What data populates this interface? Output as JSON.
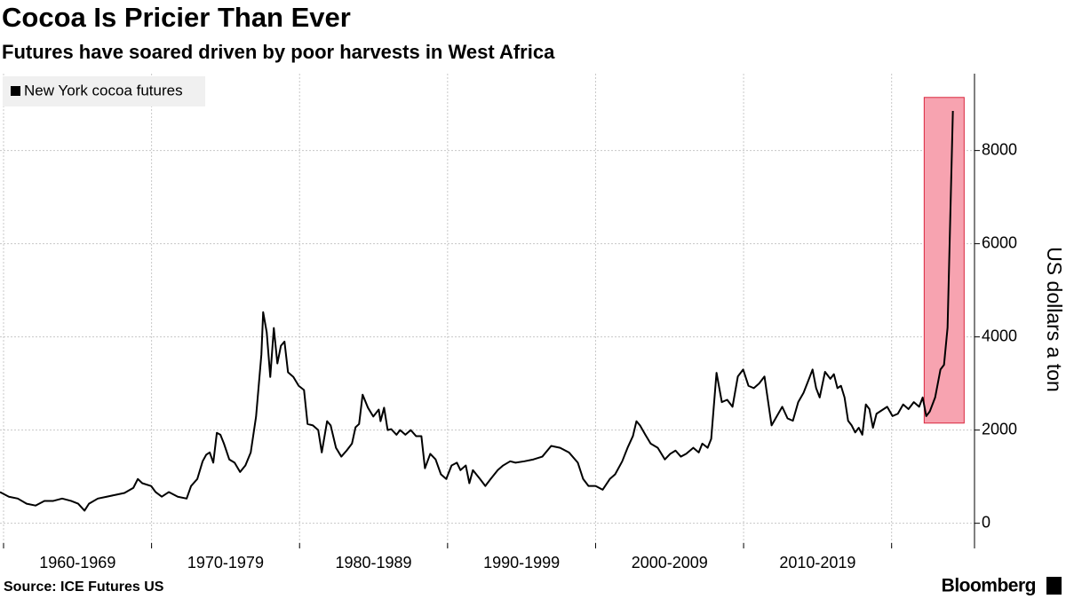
{
  "chart_data": {
    "type": "line",
    "title": "Cocoa Is Pricier Than Ever",
    "subtitle": "Futures have soared driven by poor harvests in West Africa",
    "y_label": "US dollars a ton",
    "source": "Source: ICE Futures US",
    "brand": "Bloomberg",
    "legend_position": "top-left",
    "grid": true,
    "xlim": [
      1959.76,
      2025.6
    ],
    "xticks": [
      1960,
      1970,
      1980,
      1990,
      2000,
      2010,
      2020
    ],
    "xtick_labels": [
      {
        "value": 1965,
        "label": "1960-1969"
      },
      {
        "value": 1975,
        "label": "1970-1979"
      },
      {
        "value": 1985,
        "label": "1980-1989"
      },
      {
        "value": 1995,
        "label": "1990-1999"
      },
      {
        "value": 2005,
        "label": "2000-2009"
      },
      {
        "value": 2015,
        "label": "2010-2019"
      }
    ],
    "ylim": [
      -540,
      9650
    ],
    "yticks": [
      0,
      2000,
      4000,
      6000,
      8000
    ],
    "highlight": {
      "xlim": [
        2022.2,
        2024.9
      ],
      "ylim": [
        2150,
        9140
      ],
      "color": "#f7a3b0",
      "edge": "#d9263d"
    },
    "series": [
      {
        "name": "New York cocoa futures",
        "color": "#000000",
        "x": [
          1959.76,
          1960.36,
          1960.96,
          1961.56,
          1962.16,
          1962.76,
          1963.36,
          1963.96,
          1964.56,
          1965.04,
          1965.47,
          1965.77,
          1966.37,
          1966.97,
          1967.57,
          1968.17,
          1968.77,
          1969.07,
          1969.37,
          1969.97,
          1970.27,
          1970.69,
          1971.17,
          1971.77,
          1972.37,
          1972.67,
          1973.09,
          1973.45,
          1973.69,
          1973.93,
          1974.17,
          1974.41,
          1974.65,
          1974.89,
          1975.25,
          1975.61,
          1975.98,
          1976.34,
          1976.7,
          1977.06,
          1977.42,
          1977.54,
          1977.78,
          1978.02,
          1978.26,
          1978.5,
          1978.74,
          1978.98,
          1979.22,
          1979.58,
          1979.94,
          1980.3,
          1980.54,
          1980.9,
          1981.26,
          1981.5,
          1981.86,
          1982.1,
          1982.46,
          1982.82,
          1983.18,
          1983.54,
          1983.78,
          1984.02,
          1984.26,
          1984.62,
          1984.98,
          1985.35,
          1985.47,
          1985.71,
          1985.95,
          1986.19,
          1986.55,
          1986.79,
          1987.15,
          1987.51,
          1987.87,
          1988.23,
          1988.47,
          1988.83,
          1989.19,
          1989.55,
          1989.91,
          1990.27,
          1990.63,
          1990.87,
          1991.23,
          1991.47,
          1991.71,
          1992.19,
          1992.55,
          1992.91,
          1993.39,
          1993.75,
          1994.23,
          1994.59,
          1995.19,
          1995.8,
          1996.4,
          1997.0,
          1997.6,
          1998.2,
          1998.8,
          1999.16,
          1999.52,
          2000.0,
          2000.48,
          2000.96,
          2001.32,
          2001.8,
          2002.16,
          2002.52,
          2002.76,
          2003.0,
          2003.36,
          2003.72,
          2004.2,
          2004.68,
          2005.04,
          2005.4,
          2005.76,
          2006.12,
          2006.6,
          2006.97,
          2007.21,
          2007.57,
          2007.81,
          2008.17,
          2008.53,
          2008.89,
          2009.25,
          2009.61,
          2009.97,
          2010.33,
          2010.69,
          2011.05,
          2011.41,
          2011.89,
          2012.25,
          2012.61,
          2012.97,
          2013.33,
          2013.69,
          2014.05,
          2014.42,
          2014.66,
          2014.9,
          2015.14,
          2015.5,
          2015.86,
          2016.1,
          2016.34,
          2016.58,
          2016.82,
          2017.06,
          2017.3,
          2017.54,
          2017.78,
          2018.02,
          2018.26,
          2018.5,
          2018.74,
          2018.98,
          2019.22,
          2019.46,
          2019.7,
          2020.06,
          2020.42,
          2020.78,
          2021.14,
          2021.5,
          2021.86,
          2022.1,
          2022.34,
          2022.58,
          2022.94,
          2023.3,
          2023.54,
          2023.78,
          2024.14
        ],
        "values": [
          670,
          570,
          530,
          420,
          380,
          480,
          480,
          530,
          480,
          420,
          270,
          420,
          530,
          570,
          610,
          650,
          760,
          950,
          860,
          800,
          670,
          570,
          670,
          570,
          530,
          800,
          950,
          1330,
          1470,
          1520,
          1300,
          1940,
          1900,
          1710,
          1370,
          1300,
          1100,
          1240,
          1520,
          2290,
          3620,
          4530,
          4100,
          3140,
          4190,
          3430,
          3810,
          3900,
          3240,
          3140,
          2950,
          2860,
          2130,
          2100,
          2000,
          1520,
          2190,
          2100,
          1620,
          1430,
          1560,
          1710,
          2060,
          2130,
          2760,
          2480,
          2290,
          2440,
          2190,
          2480,
          2000,
          2020,
          1900,
          2000,
          1900,
          2000,
          1870,
          1870,
          1180,
          1490,
          1370,
          1050,
          950,
          1240,
          1300,
          1140,
          1240,
          860,
          1140,
          950,
          800,
          950,
          1140,
          1240,
          1330,
          1300,
          1330,
          1370,
          1430,
          1660,
          1620,
          1520,
          1300,
          950,
          800,
          800,
          720,
          950,
          1050,
          1330,
          1620,
          1870,
          2190,
          2100,
          1900,
          1710,
          1620,
          1370,
          1490,
          1560,
          1430,
          1490,
          1620,
          1520,
          1710,
          1620,
          1810,
          3230,
          2600,
          2650,
          2500,
          3150,
          3300,
          2950,
          2900,
          3000,
          3150,
          2100,
          2300,
          2500,
          2250,
          2200,
          2600,
          2800,
          3100,
          3300,
          2900,
          2700,
          3250,
          3100,
          3200,
          2900,
          2950,
          2700,
          2200,
          2100,
          1950,
          2050,
          1900,
          2550,
          2450,
          2050,
          2350,
          2400,
          2450,
          2500,
          2300,
          2350,
          2550,
          2450,
          2600,
          2500,
          2700,
          2300,
          2400,
          2700,
          3300,
          3400,
          4200,
          8850
        ]
      }
    ]
  }
}
